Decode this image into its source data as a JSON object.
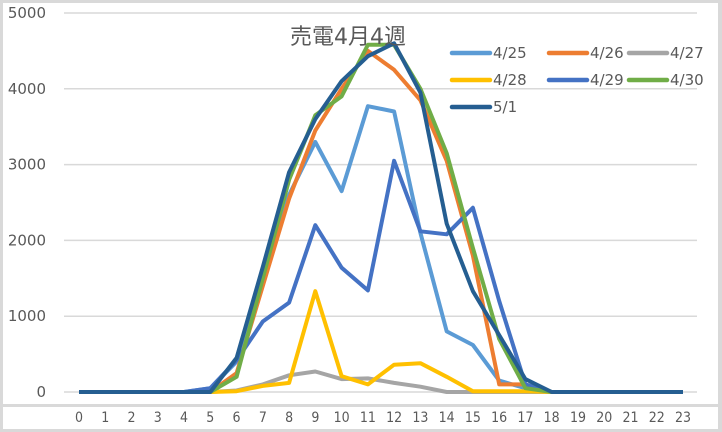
{
  "chart_data": {
    "type": "line",
    "title": "売電4月4週",
    "xlabel": "",
    "ylabel": "",
    "ylim": [
      0,
      5000
    ],
    "yticks": [
      0,
      1000,
      2000,
      3000,
      4000,
      5000
    ],
    "grid": true,
    "legend_position": "top-right",
    "categories": [
      "0",
      "1",
      "2",
      "3",
      "4",
      "5",
      "6",
      "7",
      "8",
      "9",
      "10",
      "11",
      "12",
      "13",
      "14",
      "15",
      "16",
      "17",
      "18",
      "19",
      "20",
      "21",
      "22",
      "23"
    ],
    "series": [
      {
        "name": "4/25",
        "color": "#5b9bd5",
        "values": [
          0,
          0,
          0,
          0,
          0,
          50,
          400,
          1500,
          2600,
          3300,
          2650,
          3770,
          3700,
          2100,
          800,
          620,
          150,
          50,
          0,
          0,
          0,
          0,
          0,
          0
        ]
      },
      {
        "name": "4/26",
        "color": "#ed7d31",
        "values": [
          0,
          0,
          0,
          0,
          0,
          0,
          250,
          1400,
          2550,
          3450,
          4000,
          4500,
          4250,
          3850,
          3050,
          1800,
          100,
          100,
          0,
          0,
          0,
          0,
          0,
          0
        ]
      },
      {
        "name": "4/27",
        "color": "#a5a5a5",
        "values": [
          0,
          0,
          0,
          0,
          0,
          0,
          20,
          100,
          220,
          270,
          170,
          180,
          120,
          70,
          0,
          0,
          0,
          0,
          0,
          0,
          0,
          0,
          0,
          0
        ]
      },
      {
        "name": "4/28",
        "color": "#ffc000",
        "values": [
          0,
          0,
          0,
          0,
          0,
          0,
          10,
          80,
          120,
          1330,
          210,
          100,
          360,
          380,
          200,
          10,
          10,
          10,
          0,
          0,
          0,
          0,
          0,
          0
        ]
      },
      {
        "name": "4/29",
        "color": "#4472c4",
        "values": [
          0,
          0,
          0,
          0,
          0,
          50,
          420,
          930,
          1180,
          2200,
          1640,
          1340,
          3050,
          2120,
          2080,
          2430,
          1200,
          100,
          0,
          0,
          0,
          0,
          0,
          0
        ]
      },
      {
        "name": "4/30",
        "color": "#70ad47",
        "values": [
          0,
          0,
          0,
          0,
          0,
          0,
          200,
          1500,
          2800,
          3650,
          3900,
          4580,
          4580,
          4000,
          3150,
          1900,
          700,
          50,
          0,
          0,
          0,
          0,
          0,
          0
        ]
      },
      {
        "name": "5/1",
        "color": "#255e91",
        "values": [
          0,
          0,
          0,
          0,
          0,
          0,
          450,
          1650,
          2900,
          3600,
          4100,
          4430,
          4600,
          3950,
          2220,
          1330,
          750,
          170,
          0,
          0,
          0,
          0,
          0,
          0
        ]
      }
    ]
  }
}
